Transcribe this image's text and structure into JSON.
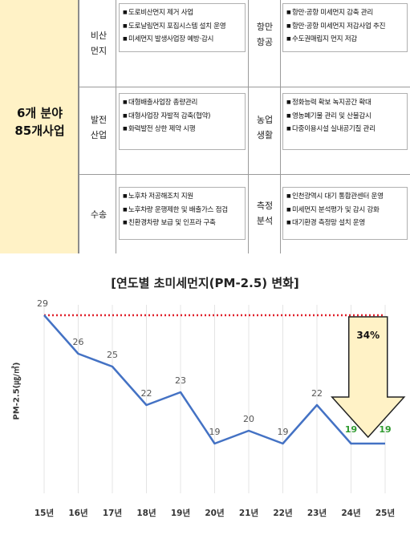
{
  "summary": {
    "line1": "6개 분야",
    "line2": "85개사업"
  },
  "sectors": [
    {
      "name_line1": "비산",
      "name_line2": "먼지",
      "items": [
        "도로비산먼지 제거 사업",
        "도로날림먼지 포집시스템 설치 운영",
        "미세먼지 발생사업장 예방·감시"
      ]
    },
    {
      "name_line1": "항만",
      "name_line2": "항공",
      "items": [
        "항만·공항 미세먼지 감축 관리",
        "항만·공항 미세먼지 저감사업 추진",
        "수도권매립지 먼지 저감"
      ]
    },
    {
      "name_line1": "발전",
      "name_line2": "산업",
      "items": [
        "대형배출사업장 총량관리",
        "대형사업장 자발적 감축(협약)",
        "화력발전 상한 제약 시행"
      ]
    },
    {
      "name_line1": "농업",
      "name_line2": "생활",
      "items": [
        "정화능력 확보 녹지공간 확대",
        "영농폐기물 관리 및 산불감시",
        "다중이용시설 실내공기질 관리"
      ]
    },
    {
      "name_line1": "수송",
      "name_line2": "",
      "items": [
        "노후차 저공해조치 지원",
        "노후차량 운행제한 및 배출가스 점검",
        "친환경차량 보급 및 인프라 구축"
      ]
    },
    {
      "name_line1": "측정",
      "name_line2": "분석",
      "items": [
        "인천광역시 대기 통합관센터 운영",
        "미세먼지 분석평가 및 감시 강화",
        "대기환경 측정망 설치 운영"
      ]
    }
  ],
  "chart_data": {
    "type": "line",
    "title": "[연도별 초미세먼지(PM-2.5) 변화]",
    "ylabel": "PM-2.5(㎍/㎥)",
    "categories": [
      "15년",
      "16년",
      "17년",
      "18년",
      "19년",
      "20년",
      "21년",
      "22년",
      "23년",
      "24년",
      "25년"
    ],
    "values": [
      29,
      26,
      25,
      22,
      23,
      19,
      20,
      19,
      22,
      19,
      19
    ],
    "ylim": [
      16,
      30
    ],
    "reference_line": 29,
    "annotation": {
      "text": "34%",
      "from": "23년",
      "to": "25년"
    },
    "colors": {
      "line": "#4472c4",
      "reference": "#e0202a",
      "highlight_labels": "#2e9a2e",
      "arrow_fill": "#fff2c6",
      "label": "#555555"
    }
  }
}
